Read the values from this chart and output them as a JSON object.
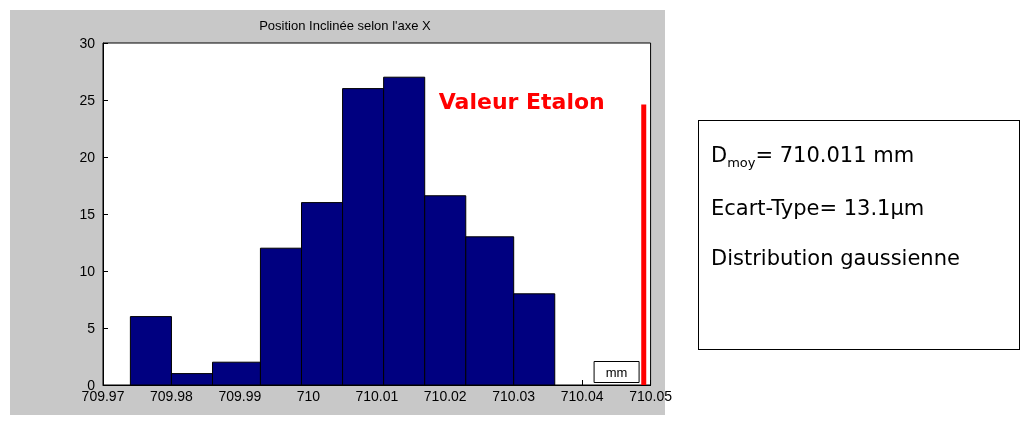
{
  "chart_data": {
    "type": "histogram",
    "title": "Position Inclinée selon l'axe X",
    "bins": [
      709.974,
      709.98,
      709.986,
      709.993,
      709.999,
      710.005,
      710.011,
      710.017,
      710.023,
      710.03,
      710.036
    ],
    "values": [
      6,
      1,
      2,
      12,
      16,
      26,
      27,
      16.6,
      13,
      8
    ],
    "color": "#000080",
    "xlim": [
      709.97,
      710.05
    ],
    "xticks": [
      709.97,
      709.98,
      709.99,
      710,
      710.01,
      710.02,
      710.03,
      710.04,
      710.05
    ],
    "ylim": [
      0,
      30
    ],
    "yticks": [
      0,
      5,
      10,
      15,
      20,
      25,
      30
    ],
    "grid": false,
    "ref_lines": [
      {
        "axis": "x",
        "value": 710.049,
        "label": "Valeur Etalon",
        "color": "#ff0000"
      }
    ],
    "annotations": [
      "mm",
      "D$_{moy}$= 710.011 mm",
      "Ecart-Type= 13.1µm",
      "Distribution gaussienne"
    ]
  }
}
